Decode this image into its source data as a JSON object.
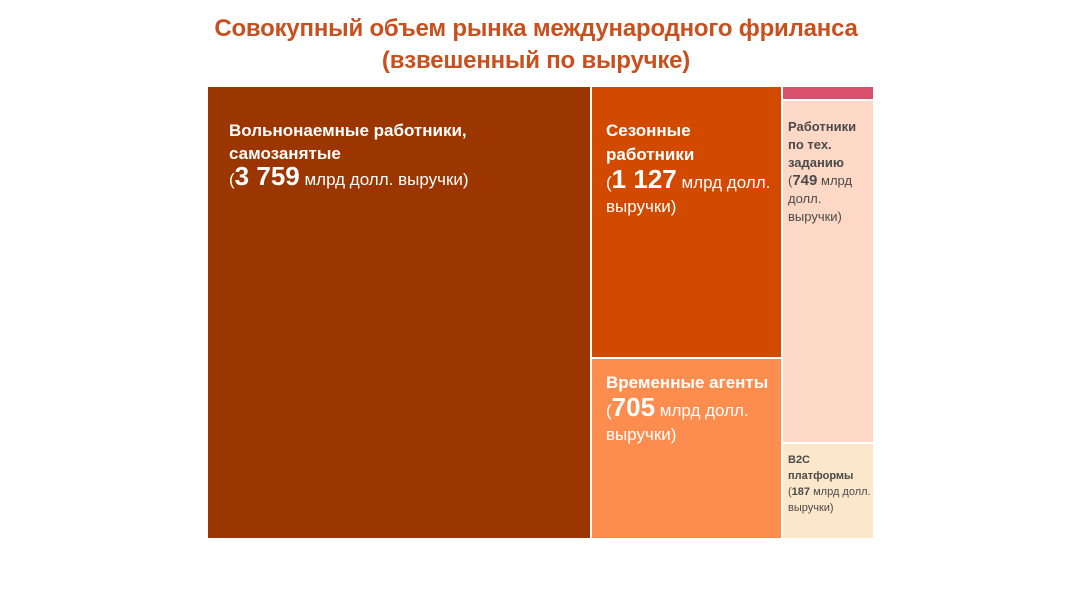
{
  "title_line1": "Совокупный объем рынка международного фриланса",
  "title_line2": "(взвешенный по выручке)",
  "colors": {
    "title": "#C8501E",
    "freelancers": "#9C3600",
    "seasonal": "#D14A00",
    "temp": "#FD8D4E",
    "tech": "#FDD8C6",
    "b2c": "#FDE7CB",
    "other": "#D8506E"
  },
  "chart_data": {
    "type": "treemap",
    "unit": "млрд долл. выручки",
    "items": [
      {
        "name": "Вольнонаемные работники, самозанятые",
        "value": 3759,
        "value_label": "3 759",
        "unit_text": "млрд долл. выручки)"
      },
      {
        "name": "Сезонные работники",
        "value": 1127,
        "value_label": "1 127",
        "unit_text": "млрд долл. выручки)"
      },
      {
        "name": "Временные агенты",
        "value": 705,
        "value_label": "705",
        "unit_text": "млрд долл. выручки)"
      },
      {
        "name": "Работники по тех. заданию",
        "value": 749,
        "value_label": "749",
        "unit_text": "млрд долл. выручки)"
      },
      {
        "name": "B2C платформы",
        "value": 187,
        "value_label": "187",
        "unit_text": "млрд долл. выручки)"
      },
      {
        "name": "",
        "value": 55,
        "value_label": "",
        "unit_text": ""
      }
    ]
  }
}
